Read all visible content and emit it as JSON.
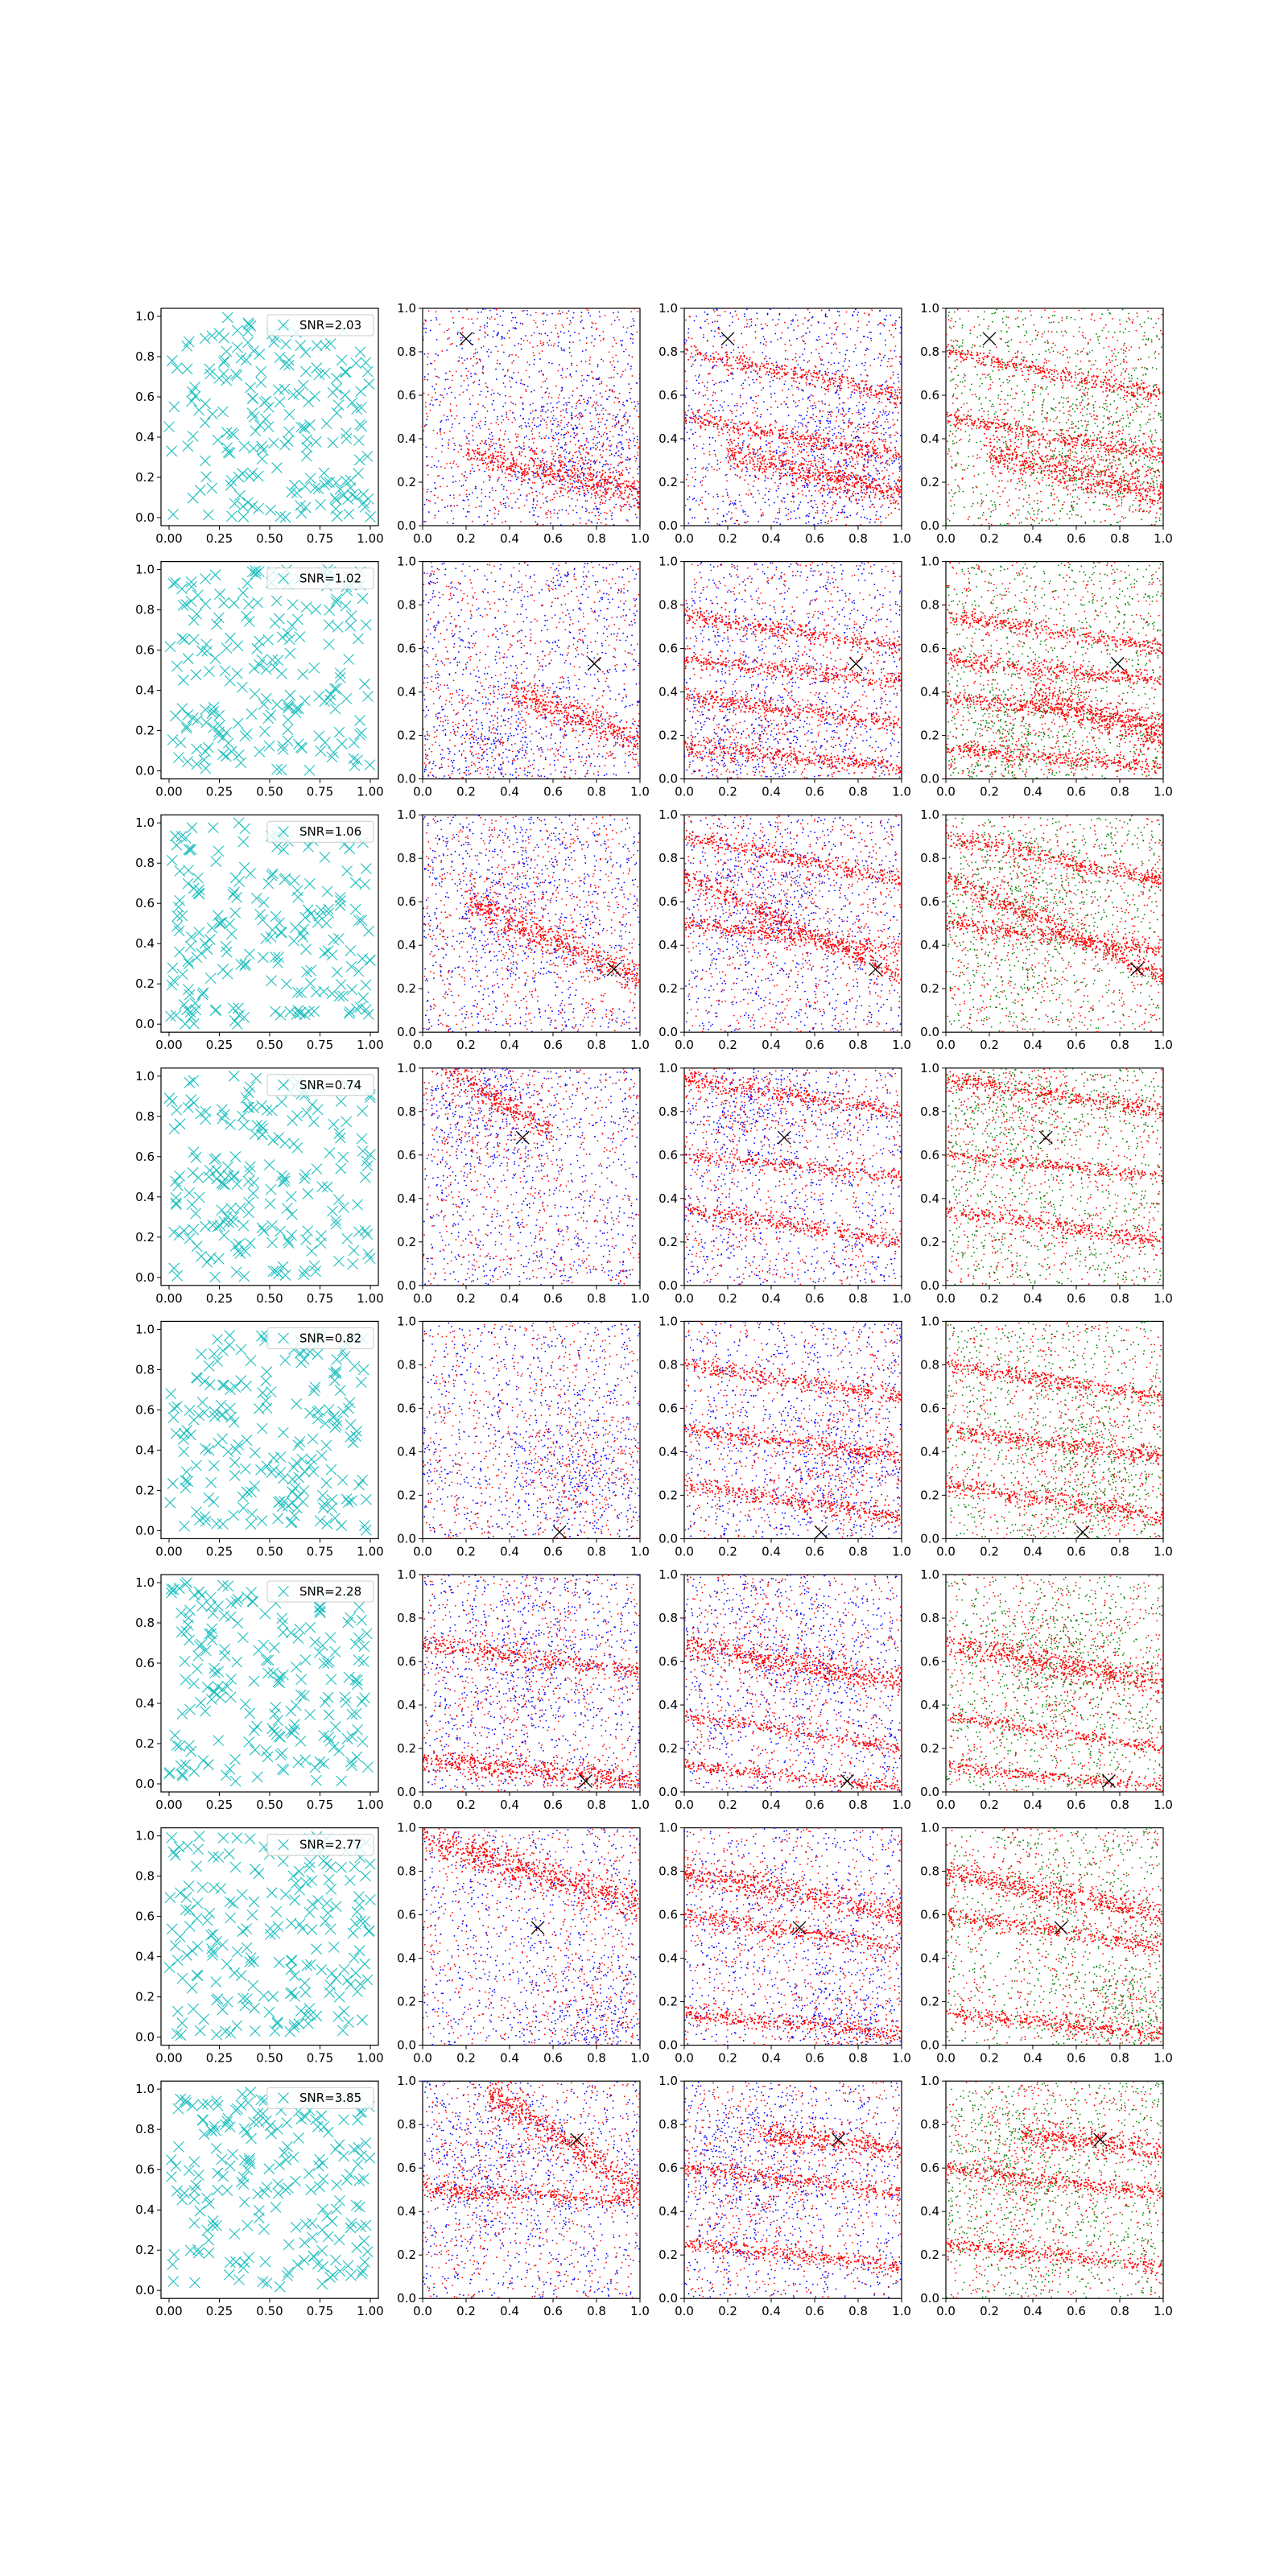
{
  "figure": {
    "rows": 8,
    "cols": 4,
    "panel_types": [
      "scatter",
      "scatter",
      "scatter",
      "scatter"
    ]
  },
  "colors": {
    "cyan_markers": "#1fbfbf",
    "red": "#ff0000",
    "blue": "#0000ff",
    "green": "#008000",
    "black": "#000000",
    "axis": "#000000"
  },
  "axes": {
    "col0": {
      "xticks": [
        "0.00",
        "0.25",
        "0.50",
        "0.75",
        "1.00"
      ],
      "yticks": [
        "0.0",
        "0.2",
        "0.4",
        "0.6",
        "0.8",
        "1.0"
      ],
      "xlim": [
        -0.04,
        1.04
      ],
      "ylim": [
        -0.04,
        1.04
      ]
    },
    "col123": {
      "xticks": [
        "0.0",
        "0.2",
        "0.4",
        "0.6",
        "0.8",
        "1.0"
      ],
      "yticks": [
        "0.0",
        "0.2",
        "0.4",
        "0.6",
        "0.8",
        "1.0"
      ],
      "xlim": [
        0,
        1
      ],
      "ylim": [
        0,
        1
      ]
    }
  },
  "chart_data": {
    "type": "scatter",
    "rows": [
      {
        "legend": "SNR=2.03",
        "target": [
          0.2,
          0.86
        ],
        "bands": [
          {
            "x": [
              0.2,
              1.0
            ],
            "y": [
              0.33,
              0.15
            ],
            "hw": 0.04,
            "color": "red",
            "panels": [
              1,
              2,
              3
            ]
          },
          {
            "x": [
              0.0,
              1.0
            ],
            "y": [
              0.8,
              0.6
            ],
            "hw": 0.02,
            "color": "red",
            "panels": [
              2,
              3
            ]
          },
          {
            "x": [
              0.0,
              1.0
            ],
            "y": [
              0.5,
              0.32
            ],
            "hw": 0.02,
            "color": "red",
            "panels": [
              2,
              3
            ]
          }
        ],
        "blue_cluster": [
          0.75,
          0.35
        ]
      },
      {
        "legend": "SNR=1.02",
        "target": [
          0.79,
          0.53
        ],
        "bands": [
          {
            "x": [
              0.4,
              1.0
            ],
            "y": [
              0.4,
              0.18
            ],
            "hw": 0.04,
            "color": "red",
            "panels": [
              1,
              3
            ]
          },
          {
            "x": [
              0.0,
              1.0
            ],
            "y": [
              0.75,
              0.6
            ],
            "hw": 0.02,
            "color": "red",
            "panels": [
              2,
              3
            ]
          },
          {
            "x": [
              0.0,
              1.0
            ],
            "y": [
              0.55,
              0.45
            ],
            "hw": 0.02,
            "color": "red",
            "panels": [
              2,
              3
            ]
          },
          {
            "x": [
              0.0,
              1.0
            ],
            "y": [
              0.38,
              0.25
            ],
            "hw": 0.02,
            "color": "red",
            "panels": [
              2,
              3
            ]
          },
          {
            "x": [
              0.0,
              1.0
            ],
            "y": [
              0.15,
              0.05
            ],
            "hw": 0.02,
            "color": "red",
            "panels": [
              2,
              3
            ]
          }
        ],
        "blue_cluster": [
          0.3,
          0.15
        ]
      },
      {
        "legend": "SNR=1.06",
        "target": [
          0.88,
          0.29
        ],
        "bands": [
          {
            "x": [
              0.2,
              1.0
            ],
            "y": [
              0.6,
              0.25
            ],
            "hw": 0.04,
            "color": "red",
            "panels": [
              1
            ]
          },
          {
            "x": [
              0.0,
              1.0
            ],
            "y": [
              0.72,
              0.25
            ],
            "hw": 0.025,
            "color": "red",
            "panels": [
              2,
              3
            ]
          },
          {
            "x": [
              0.0,
              1.0
            ],
            "y": [
              0.9,
              0.7
            ],
            "hw": 0.02,
            "color": "red",
            "panels": [
              2,
              3
            ]
          },
          {
            "x": [
              0.0,
              1.0
            ],
            "y": [
              0.5,
              0.38
            ],
            "hw": 0.02,
            "color": "red",
            "panels": [
              2,
              3
            ]
          }
        ],
        "blue_cluster": [
          0.4,
          0.6
        ]
      },
      {
        "legend": "SNR=0.74",
        "target": [
          0.46,
          0.68
        ],
        "bands": [
          {
            "x": [
              0.1,
              0.6
            ],
            "y": [
              1.0,
              0.7
            ],
            "hw": 0.03,
            "color": "red",
            "panels": [
              1
            ]
          },
          {
            "x": [
              0.0,
              1.0
            ],
            "y": [
              0.95,
              0.8
            ],
            "hw": 0.02,
            "color": "red",
            "panels": [
              2,
              3
            ]
          },
          {
            "x": [
              0.0,
              1.0
            ],
            "y": [
              0.35,
              0.2
            ],
            "hw": 0.02,
            "color": "red",
            "panels": [
              2,
              3
            ]
          },
          {
            "x": [
              0.0,
              1.0
            ],
            "y": [
              0.6,
              0.5
            ],
            "hw": 0.015,
            "color": "red",
            "panels": [
              2,
              3
            ]
          }
        ],
        "blue_cluster": [
          0.3,
          0.8
        ]
      },
      {
        "legend": "SNR=0.82",
        "target": [
          0.63,
          0.03
        ],
        "bands": [
          {
            "x": [
              0.0,
              1.0
            ],
            "y": [
              0.8,
              0.65
            ],
            "hw": 0.02,
            "color": "red",
            "panels": [
              2,
              3
            ]
          },
          {
            "x": [
              0.0,
              1.0
            ],
            "y": [
              0.5,
              0.38
            ],
            "hw": 0.02,
            "color": "red",
            "panels": [
              2,
              3
            ]
          },
          {
            "x": [
              0.0,
              1.0
            ],
            "y": [
              0.25,
              0.1
            ],
            "hw": 0.02,
            "color": "red",
            "panels": [
              2,
              3
            ]
          }
        ],
        "blue_cluster": [
          0.7,
          0.3
        ]
      },
      {
        "legend": "SNR=2.28",
        "target": [
          0.75,
          0.05
        ],
        "bands": [
          {
            "x": [
              0.0,
              1.0
            ],
            "y": [
              0.15,
              0.05
            ],
            "hw": 0.03,
            "color": "red",
            "panels": [
              1
            ]
          },
          {
            "x": [
              0.0,
              1.0
            ],
            "y": [
              0.68,
              0.55
            ],
            "hw": 0.02,
            "color": "red",
            "panels": [
              1
            ]
          },
          {
            "x": [
              0.0,
              1.0
            ],
            "y": [
              0.68,
              0.5
            ],
            "hw": 0.03,
            "color": "red",
            "panels": [
              2,
              3
            ]
          },
          {
            "x": [
              0.0,
              1.0
            ],
            "y": [
              0.35,
              0.2
            ],
            "hw": 0.015,
            "color": "red",
            "panels": [
              2,
              3
            ]
          },
          {
            "x": [
              0.0,
              1.0
            ],
            "y": [
              0.12,
              0.02
            ],
            "hw": 0.015,
            "color": "red",
            "panels": [
              2,
              3
            ]
          }
        ],
        "blue_cluster": [
          0.5,
          0.6
        ]
      },
      {
        "legend": "SNR=2.77",
        "target": [
          0.53,
          0.54
        ],
        "bands": [
          {
            "x": [
              0.0,
              1.0
            ],
            "y": [
              0.95,
              0.65
            ],
            "hw": 0.04,
            "color": "red",
            "panels": [
              1
            ]
          },
          {
            "x": [
              0.0,
              1.0
            ],
            "y": [
              0.8,
              0.6
            ],
            "hw": 0.03,
            "color": "red",
            "panels": [
              2,
              3
            ]
          },
          {
            "x": [
              0.0,
              1.0
            ],
            "y": [
              0.6,
              0.45
            ],
            "hw": 0.02,
            "color": "red",
            "panels": [
              2,
              3
            ]
          },
          {
            "x": [
              0.0,
              1.0
            ],
            "y": [
              0.15,
              0.05
            ],
            "hw": 0.02,
            "color": "red",
            "panels": [
              2,
              3
            ]
          }
        ],
        "blue_cluster": [
          0.8,
          0.1
        ]
      },
      {
        "legend": "SNR=3.85",
        "target": [
          0.71,
          0.73
        ],
        "bands": [
          {
            "x": [
              0.3,
              1.0
            ],
            "y": [
              0.95,
              0.5
            ],
            "hw": 0.04,
            "color": "red",
            "panels": [
              1
            ]
          },
          {
            "x": [
              0.0,
              1.0
            ],
            "y": [
              0.5,
              0.45
            ],
            "hw": 0.02,
            "color": "red",
            "panels": [
              1
            ]
          },
          {
            "x": [
              0.35,
              1.0
            ],
            "y": [
              0.76,
              0.68
            ],
            "hw": 0.03,
            "color": "red",
            "panels": [
              2,
              3
            ]
          },
          {
            "x": [
              0.0,
              1.0
            ],
            "y": [
              0.6,
              0.48
            ],
            "hw": 0.02,
            "color": "red",
            "panels": [
              2,
              3
            ]
          },
          {
            "x": [
              0.0,
              1.0
            ],
            "y": [
              0.25,
              0.15
            ],
            "hw": 0.02,
            "color": "red",
            "panels": [
              2,
              3
            ]
          }
        ],
        "blue_cluster": [
          0.3,
          0.6
        ]
      }
    ]
  }
}
